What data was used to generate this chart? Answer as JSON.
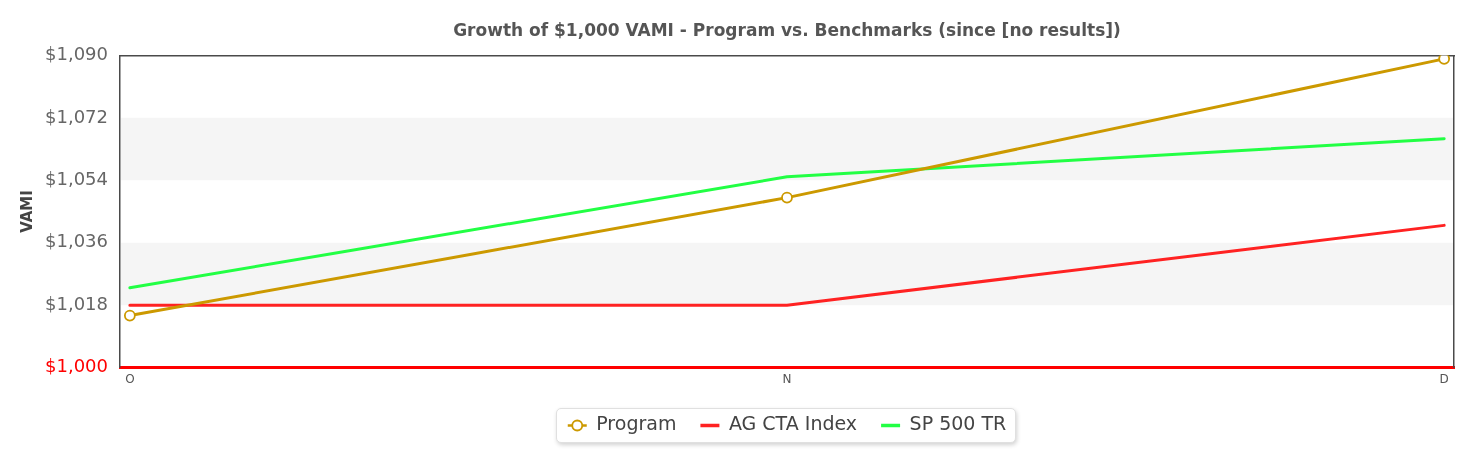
{
  "chart_data": {
    "type": "line",
    "title": "Growth of $1,000 VAMI - Program vs. Benchmarks (since [no results])",
    "ylabel": "VAMI",
    "categories": [
      "O",
      "N",
      "D"
    ],
    "series": [
      {
        "name": "Program",
        "color": "#cc9900",
        "marker": "circle",
        "values": [
          1015,
          1049,
          1089
        ]
      },
      {
        "name": "AG CTA Index",
        "color": "#ff2222",
        "marker": "none",
        "values": [
          1018,
          1018,
          1041
        ]
      },
      {
        "name": "SP 500 TR",
        "color": "#22ff44",
        "marker": "none",
        "values": [
          1023,
          1055,
          1066
        ]
      }
    ],
    "ylim": [
      1000,
      1090
    ],
    "yticks": [
      {
        "value": 1000,
        "label": "$1,000"
      },
      {
        "value": 1018,
        "label": "$1,018"
      },
      {
        "value": 1036,
        "label": "$1,036"
      },
      {
        "value": 1054,
        "label": "$1,054"
      },
      {
        "value": 1072,
        "label": "$1,072"
      },
      {
        "value": 1090,
        "label": "$1,090"
      }
    ],
    "bands": [
      {
        "axis": "y",
        "from": 1018,
        "to": 1036,
        "color": "#f5f5f5"
      },
      {
        "axis": "y",
        "from": 1054,
        "to": 1072,
        "color": "#f5f5f5"
      }
    ],
    "legend": "bottom"
  }
}
